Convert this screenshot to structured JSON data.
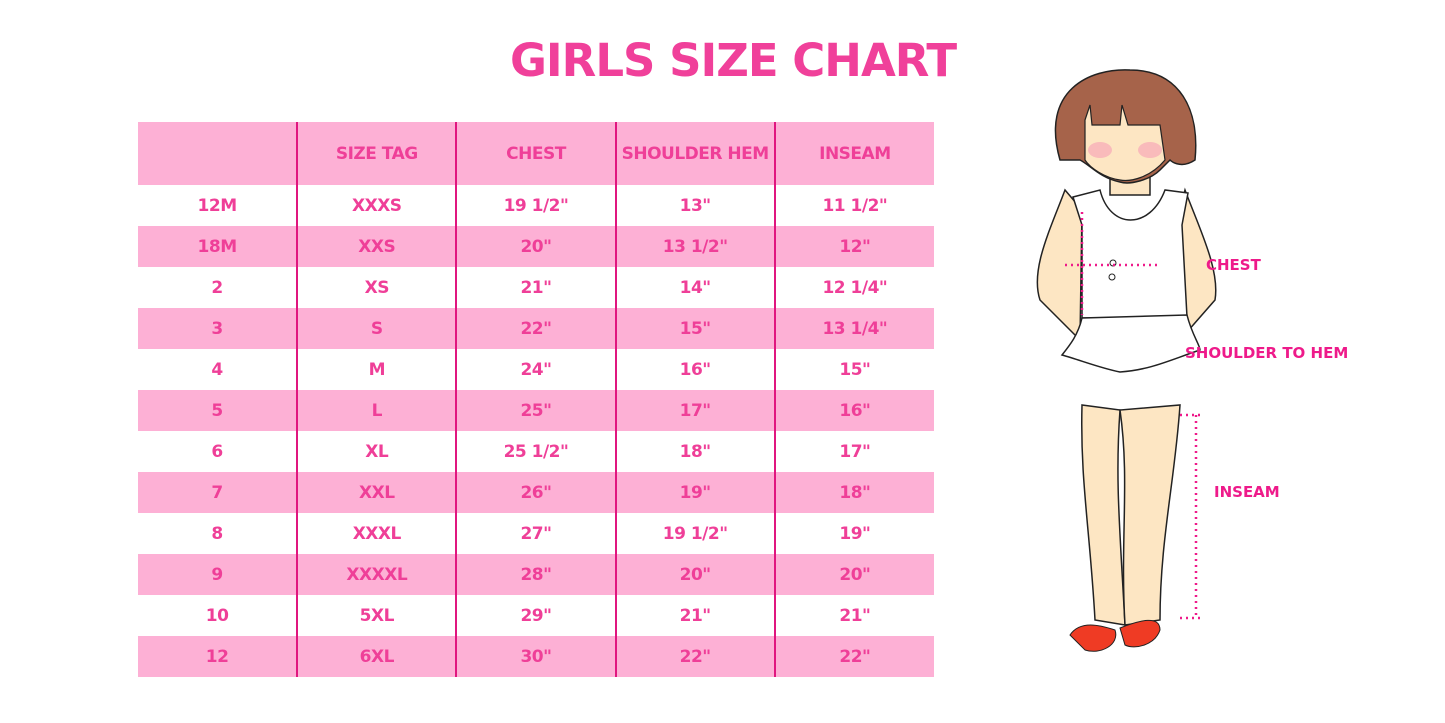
{
  "title": "GIRLS SIZE CHART",
  "table": {
    "headers": [
      "",
      "SIZE TAG",
      "CHEST",
      "SHOULDER HEM",
      "INSEAM"
    ],
    "rows": [
      [
        "12M",
        "XXXS",
        "19 1/2\"",
        "13\"",
        "11 1/2\""
      ],
      [
        "18M",
        "XXS",
        "20\"",
        "13 1/2\"",
        "12\""
      ],
      [
        "2",
        "XS",
        "21\"",
        "14\"",
        "12 1/4\""
      ],
      [
        "3",
        "S",
        "22\"",
        "15\"",
        "13 1/4\""
      ],
      [
        "4",
        "M",
        "24\"",
        "16\"",
        "15\""
      ],
      [
        "5",
        "L",
        "25\"",
        "17\"",
        "16\""
      ],
      [
        "6",
        "XL",
        "25 1/2\"",
        "18\"",
        "17\""
      ],
      [
        "7",
        "XXL",
        "26\"",
        "19\"",
        "18\""
      ],
      [
        "8",
        "XXXL",
        "27\"",
        "19 1/2\"",
        "19\""
      ],
      [
        "9",
        "XXXXL",
        "28\"",
        "20\"",
        "20\""
      ],
      [
        "10",
        "5XL",
        "29\"",
        "21\"",
        "21\""
      ],
      [
        "12",
        "6XL",
        "30\"",
        "22\"",
        "22\""
      ]
    ]
  },
  "figure": {
    "labels": {
      "chest": "CHEST",
      "shoulder_to_hem": "SHOULDER TO HEM",
      "inseam": "INSEAM"
    }
  },
  "colors": {
    "accent": "#ef3f98",
    "row_pink": "#fdb0d5",
    "divider": "#e0167f"
  }
}
